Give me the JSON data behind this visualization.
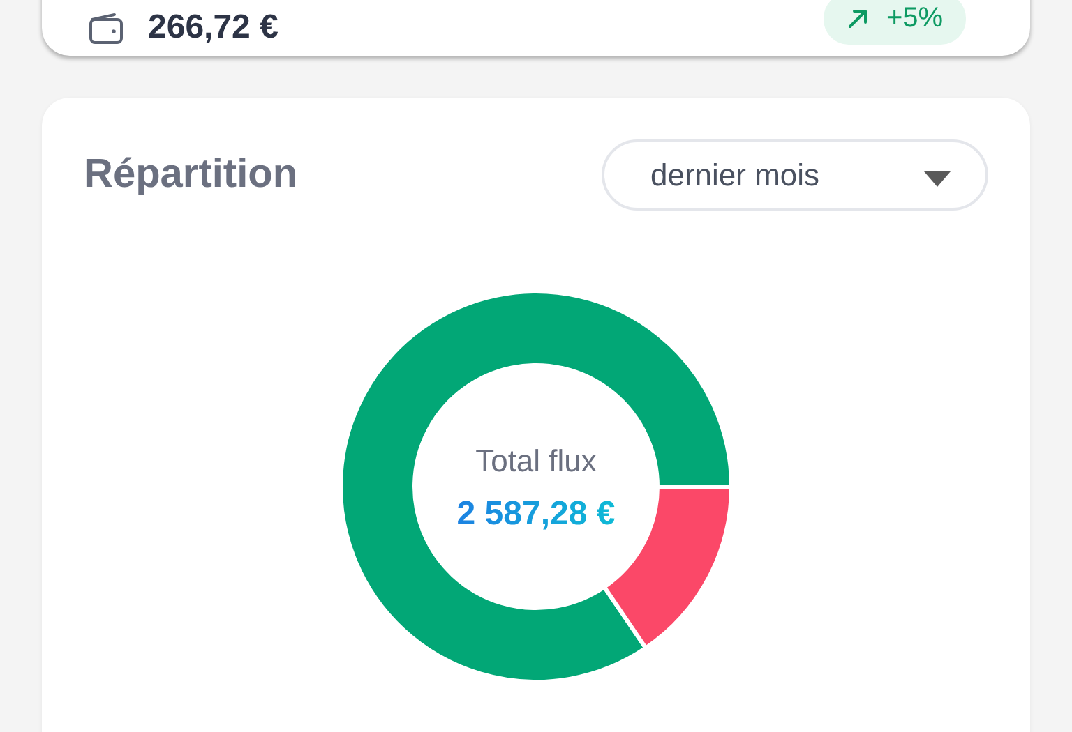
{
  "chart_data": [
    {
      "type": "other",
      "annotations": [
        "266,72 €",
        "+5%"
      ]
    },
    {
      "type": "donut",
      "title": "Répartition",
      "subtitle": "dernier mois",
      "categories": [
        null,
        null
      ],
      "values": [
        84.5,
        15.5
      ],
      "colors": [
        "#02a776",
        "#fb4868"
      ],
      "annotations": [
        "Total flux",
        "2 587,28 €"
      ]
    }
  ]
}
